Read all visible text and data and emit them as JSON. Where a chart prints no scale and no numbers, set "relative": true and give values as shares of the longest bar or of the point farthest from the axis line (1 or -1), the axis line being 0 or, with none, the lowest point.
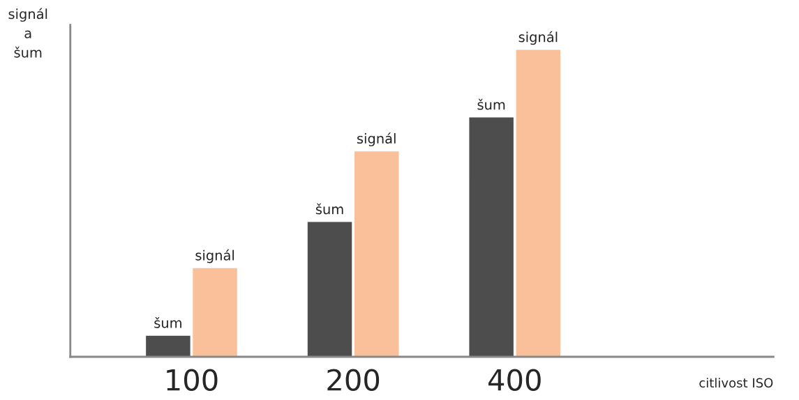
{
  "chart_data": {
    "type": "bar",
    "relative": true,
    "ylabel": "signál\na\nšum",
    "annotations": [
      "citlivost ISO"
    ],
    "categories": [
      "100",
      "200",
      "400"
    ],
    "series": [
      {
        "name": "šum",
        "color": "#4d4d4d",
        "values": [
          0.07,
          0.44,
          0.78
        ]
      },
      {
        "name": "signál",
        "color": "#f9c09a",
        "values": [
          0.29,
          0.67,
          1
        ]
      }
    ],
    "grid": false,
    "legend": false
  }
}
